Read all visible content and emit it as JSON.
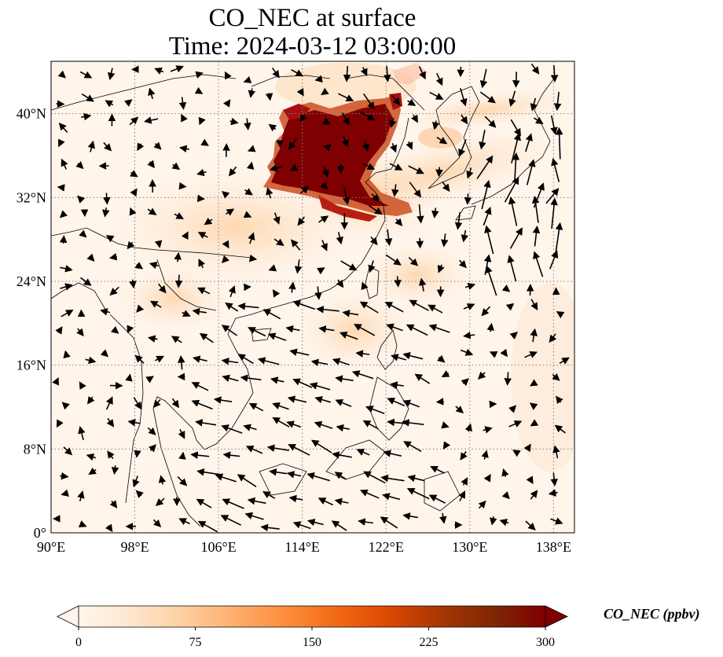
{
  "title_line1": "CO_NEC at surface",
  "title_line2": "Time: 2024-03-12 03:00:00",
  "map": {
    "lon_range": [
      90,
      140
    ],
    "lat_range": [
      0,
      45
    ],
    "lon_ticks": [
      {
        "value": 90,
        "label": "90°E"
      },
      {
        "value": 98,
        "label": "98°E"
      },
      {
        "value": 106,
        "label": "106°E"
      },
      {
        "value": 114,
        "label": "114°E"
      },
      {
        "value": 122,
        "label": "122°E"
      },
      {
        "value": 130,
        "label": "130°E"
      },
      {
        "value": 138,
        "label": "138°E"
      }
    ],
    "lat_ticks": [
      {
        "value": 0,
        "label": "0°"
      },
      {
        "value": 8,
        "label": "8°N"
      },
      {
        "value": 16,
        "label": "16°N"
      },
      {
        "value": 24,
        "label": "24°N"
      },
      {
        "value": 32,
        "label": "32°N"
      },
      {
        "value": 40,
        "label": "40°N"
      }
    ],
    "gridlines": "dotted",
    "background_color": "#fff5eb",
    "high_concentration_color": "#7f0000"
  },
  "colorbar": {
    "label": "CO_NEC (ppbv)",
    "min": 0,
    "max": 300,
    "ticks": [
      "0",
      "75",
      "150",
      "225",
      "300"
    ],
    "colors": [
      "#fff5eb",
      "#fee6ce",
      "#fdd0a2",
      "#fdae6b",
      "#fd8d3c",
      "#f16913",
      "#d94801",
      "#a63603",
      "#7f2704",
      "#7f0000"
    ]
  }
}
